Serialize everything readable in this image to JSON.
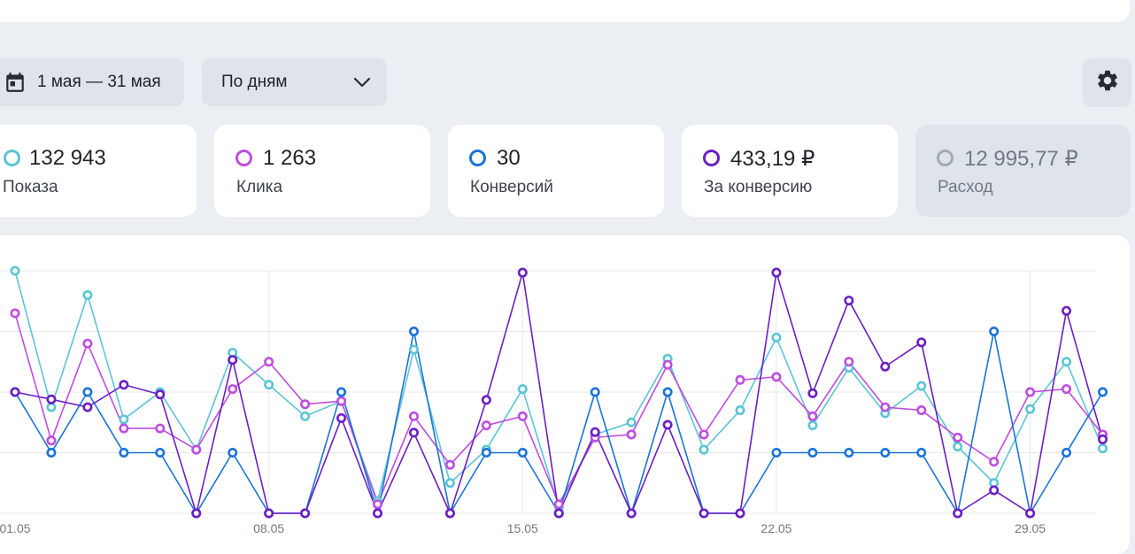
{
  "toolbar": {
    "date_range": "1 мая — 31 мая",
    "period": "По дням"
  },
  "metrics": [
    {
      "value": "132 943",
      "label": "Показа",
      "color": "#5bc5d5",
      "active": true
    },
    {
      "value": "1 263",
      "label": "Клика",
      "color": "#c04ce0",
      "active": true
    },
    {
      "value": "30",
      "label": "Конверсий",
      "color": "#1a73d9",
      "active": true
    },
    {
      "value": "433,19 ₽",
      "label": "За конверсию",
      "color": "#6a1fc4",
      "active": true
    },
    {
      "value": "12 995,77 ₽",
      "label": "Расход",
      "color": "#a3aab5",
      "active": false
    }
  ],
  "chart_data": {
    "type": "line",
    "x": [
      "01.05",
      "02.05",
      "03.05",
      "04.05",
      "05.05",
      "06.05",
      "07.05",
      "08.05",
      "09.05",
      "10.05",
      "11.05",
      "12.05",
      "13.05",
      "14.05",
      "15.05",
      "16.05",
      "17.05",
      "18.05",
      "19.05",
      "20.05",
      "21.05",
      "22.05",
      "23.05",
      "24.05",
      "25.05",
      "26.05",
      "27.05",
      "28.05",
      "29.05",
      "30.05",
      "31.05"
    ],
    "x_tick_labels": [
      "01.05",
      "08.05",
      "15.05",
      "22.05",
      "29.05"
    ],
    "grid": true,
    "ylim": [
      0,
      4
    ],
    "series": [
      {
        "color": "#5bc5d5",
        "values": [
          4.0,
          1.75,
          3.6,
          1.55,
          2.0,
          1.05,
          2.65,
          2.12,
          1.6,
          1.85,
          0.2,
          2.7,
          0.5,
          1.05,
          2.05,
          0.1,
          1.3,
          1.5,
          2.55,
          1.05,
          1.7,
          2.9,
          1.45,
          2.4,
          1.65,
          2.1,
          1.1,
          0.5,
          1.72,
          2.5,
          1.07
        ]
      },
      {
        "color": "#c04ce0",
        "values": [
          3.3,
          1.2,
          2.8,
          1.4,
          1.4,
          1.05,
          2.05,
          2.5,
          1.8,
          1.85,
          0.15,
          1.6,
          0.8,
          1.45,
          1.6,
          0.15,
          1.25,
          1.3,
          2.45,
          1.3,
          2.2,
          2.25,
          1.6,
          2.5,
          1.75,
          1.7,
          1.25,
          0.85,
          2.0,
          2.05,
          1.3
        ]
      },
      {
        "color": "#1a73d9",
        "values": [
          2.0,
          1.0,
          2.0,
          1.0,
          1.0,
          0.0,
          1.0,
          0.0,
          0.0,
          2.0,
          0.0,
          3.0,
          0.0,
          1.0,
          1.0,
          0.0,
          2.0,
          0.0,
          2.0,
          0.0,
          0.0,
          1.0,
          1.0,
          1.0,
          1.0,
          1.0,
          0.0,
          3.0,
          0.0,
          1.0,
          2.0
        ]
      },
      {
        "color": "#6a1fc4",
        "values": [
          2.0,
          1.88,
          1.75,
          2.12,
          1.96,
          0.0,
          2.53,
          0.0,
          0.0,
          1.57,
          0.0,
          1.33,
          0.0,
          1.87,
          3.97,
          0.0,
          1.34,
          0.0,
          1.46,
          0.0,
          0.0,
          3.97,
          1.98,
          3.51,
          2.42,
          2.82,
          0.0,
          0.38,
          0.0,
          3.34,
          1.22
        ]
      }
    ]
  }
}
